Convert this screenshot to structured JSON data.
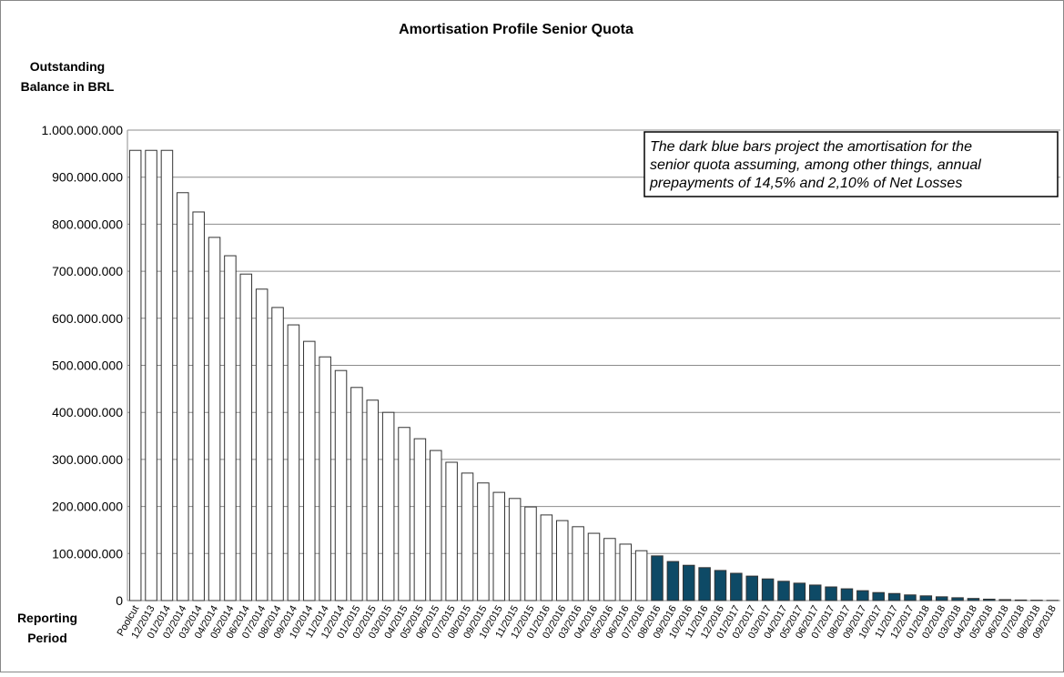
{
  "chart_data": {
    "type": "bar",
    "title": "Amortisation Profile Senior Quota",
    "y_label": [
      "Outstanding",
      "Balance in BRL"
    ],
    "x_label": [
      "Reporting",
      "Period"
    ],
    "annotation": [
      "The dark blue bars project the amortisation for the",
      "senior quota assuming, among other things, annual",
      "prepayments of 14,5% and 2,10% of Net Losses"
    ],
    "categories": [
      "Poolcut",
      "12/2013",
      "01/2014",
      "02/2014",
      "03/2014",
      "04/2014",
      "05/2014",
      "06/2014",
      "07/2014",
      "08/2014",
      "09/2014",
      "10/2014",
      "11/2014",
      "12/2014",
      "01/2015",
      "02/2015",
      "03/2015",
      "04/2015",
      "05/2015",
      "06/2015",
      "07/2015",
      "08/2015",
      "09/2015",
      "10/2015",
      "11/2015",
      "12/2015",
      "01/2016",
      "02/2016",
      "03/2016",
      "04/2016",
      "05/2016",
      "06/2016",
      "07/2016",
      "08/2016",
      "09/2016",
      "10/2016",
      "11/2016",
      "12/2016",
      "01/2017",
      "02/2017",
      "03/2017",
      "04/2017",
      "05/2017",
      "06/2017",
      "07/2017",
      "08/2017",
      "09/2017",
      "10/2017",
      "11/2017",
      "12/2017",
      "01/2018",
      "02/2018",
      "03/2018",
      "04/2018",
      "05/2018",
      "06/2018",
      "07/2018",
      "08/2018",
      "09/2018"
    ],
    "values": [
      957000000,
      957000000,
      957000000,
      867000000,
      826000000,
      772000000,
      733000000,
      694000000,
      662000000,
      623000000,
      586000000,
      551000000,
      518000000,
      489000000,
      453000000,
      426000000,
      400000000,
      368000000,
      344000000,
      319000000,
      294000000,
      271000000,
      250000000,
      230000000,
      217000000,
      199000000,
      182000000,
      170000000,
      157000000,
      143000000,
      132000000,
      120000000,
      106000000,
      95000000,
      83000000,
      75000000,
      70000000,
      64000000,
      58000000,
      52000000,
      46000000,
      41000000,
      37000000,
      33000000,
      29000000,
      25000000,
      21000000,
      17000000,
      15000000,
      12000000,
      10000000,
      8000000,
      6000000,
      4500000,
      3000000,
      2000000,
      1200000,
      800000,
      400000
    ],
    "colors": [
      "#ffffff",
      "#ffffff",
      "#ffffff",
      "#ffffff",
      "#ffffff",
      "#ffffff",
      "#ffffff",
      "#ffffff",
      "#ffffff",
      "#ffffff",
      "#ffffff",
      "#ffffff",
      "#ffffff",
      "#ffffff",
      "#ffffff",
      "#ffffff",
      "#ffffff",
      "#ffffff",
      "#ffffff",
      "#ffffff",
      "#ffffff",
      "#ffffff",
      "#ffffff",
      "#ffffff",
      "#ffffff",
      "#ffffff",
      "#ffffff",
      "#ffffff",
      "#ffffff",
      "#ffffff",
      "#ffffff",
      "#ffffff",
      "#ffffff",
      "#0e4a66",
      "#0e4a66",
      "#0e4a66",
      "#0e4a66",
      "#0e4a66",
      "#0e4a66",
      "#0e4a66",
      "#0e4a66",
      "#0e4a66",
      "#0e4a66",
      "#0e4a66",
      "#0e4a66",
      "#0e4a66",
      "#0e4a66",
      "#0e4a66",
      "#0e4a66",
      "#0e4a66",
      "#0e4a66",
      "#0e4a66",
      "#0e4a66",
      "#0e4a66",
      "#0e4a66",
      "#0e4a66",
      "#0e4a66",
      "#0e4a66",
      "#0e4a66"
    ],
    "ylim": [
      0,
      1000000000
    ],
    "yticks": [
      0,
      {
        "value": 100000000,
        "label": "100.000.000"
      },
      {
        "value": 200000000,
        "label": "200.000.000"
      },
      {
        "value": 300000000,
        "label": "300.000.000"
      },
      {
        "value": 400000000,
        "label": "400.000.000"
      },
      {
        "value": 500000000,
        "label": "500.000.000"
      },
      {
        "value": 600000000,
        "label": "600.000.000"
      },
      {
        "value": 700000000,
        "label": "700.000.000"
      },
      {
        "value": 800000000,
        "label": "800.000.000"
      },
      {
        "value": 900000000,
        "label": "900.000.000"
      },
      {
        "value": 1000000000,
        "label": "1.000.000.000"
      }
    ],
    "grid": true
  }
}
